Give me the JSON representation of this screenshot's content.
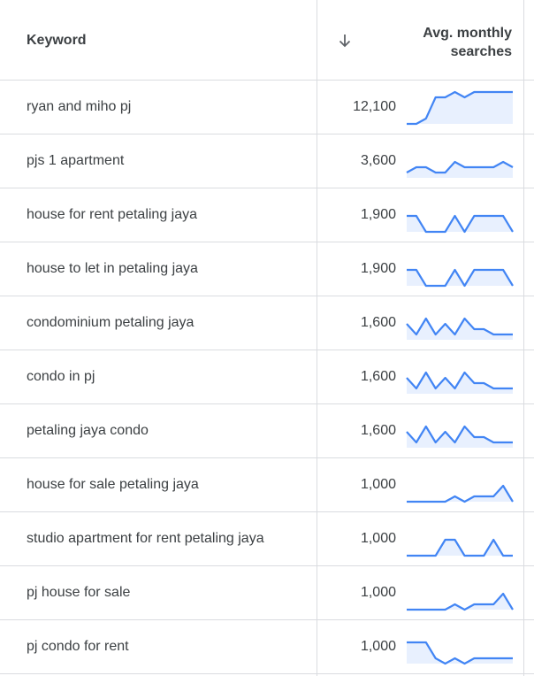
{
  "header": {
    "keyword_label": "Keyword",
    "sort_icon": "arrow-down-icon",
    "avg_line1": "Avg. monthly",
    "avg_line2": "searches"
  },
  "colors": {
    "line": "#4285f4",
    "fill": "#e8f0fe",
    "border": "#dadce0"
  },
  "rows": [
    {
      "keyword": "ryan and miho pj",
      "volume": "12,100",
      "trend": [
        0,
        0,
        1,
        5,
        5,
        6,
        5,
        6,
        6,
        6,
        6,
        6
      ]
    },
    {
      "keyword": "pjs 1 apartment",
      "volume": "3,600",
      "trend": [
        1,
        2,
        2,
        1,
        1,
        3,
        2,
        2,
        2,
        2,
        3,
        2
      ]
    },
    {
      "keyword": "house for rent petaling jaya",
      "volume": "1,900",
      "trend": [
        3,
        3,
        0,
        0,
        0,
        3,
        0,
        3,
        3,
        3,
        3,
        0
      ]
    },
    {
      "keyword": "house to let in petaling jaya",
      "volume": "1,900",
      "trend": [
        3,
        3,
        0,
        0,
        0,
        3,
        0,
        3,
        3,
        3,
        3,
        0
      ]
    },
    {
      "keyword": "condominium petaling jaya",
      "volume": "1,600",
      "trend": [
        3,
        1,
        4,
        1,
        3,
        1,
        4,
        2,
        2,
        1,
        1,
        1
      ]
    },
    {
      "keyword": "condo in pj",
      "volume": "1,600",
      "trend": [
        3,
        1,
        4,
        1,
        3,
        1,
        4,
        2,
        2,
        1,
        1,
        1
      ]
    },
    {
      "keyword": "petaling jaya condo",
      "volume": "1,600",
      "trend": [
        3,
        1,
        4,
        1,
        3,
        1,
        4,
        2,
        2,
        1,
        1,
        1
      ]
    },
    {
      "keyword": "house for sale petaling jaya",
      "volume": "1,000",
      "trend": [
        0,
        0,
        0,
        0,
        0,
        1,
        0,
        1,
        1,
        1,
        3,
        0
      ]
    },
    {
      "keyword": "studio apartment for rent petaling jaya",
      "volume": "1,000",
      "trend": [
        0,
        0,
        0,
        0,
        3,
        3,
        0,
        0,
        0,
        3,
        0,
        0
      ]
    },
    {
      "keyword": "pj house for sale",
      "volume": "1,000",
      "trend": [
        0,
        0,
        0,
        0,
        0,
        1,
        0,
        1,
        1,
        1,
        3,
        0
      ]
    },
    {
      "keyword": "pj condo for rent",
      "volume": "1,000",
      "trend": [
        4,
        4,
        4,
        1,
        0,
        1,
        0,
        1,
        1,
        1,
        1,
        1
      ]
    }
  ]
}
